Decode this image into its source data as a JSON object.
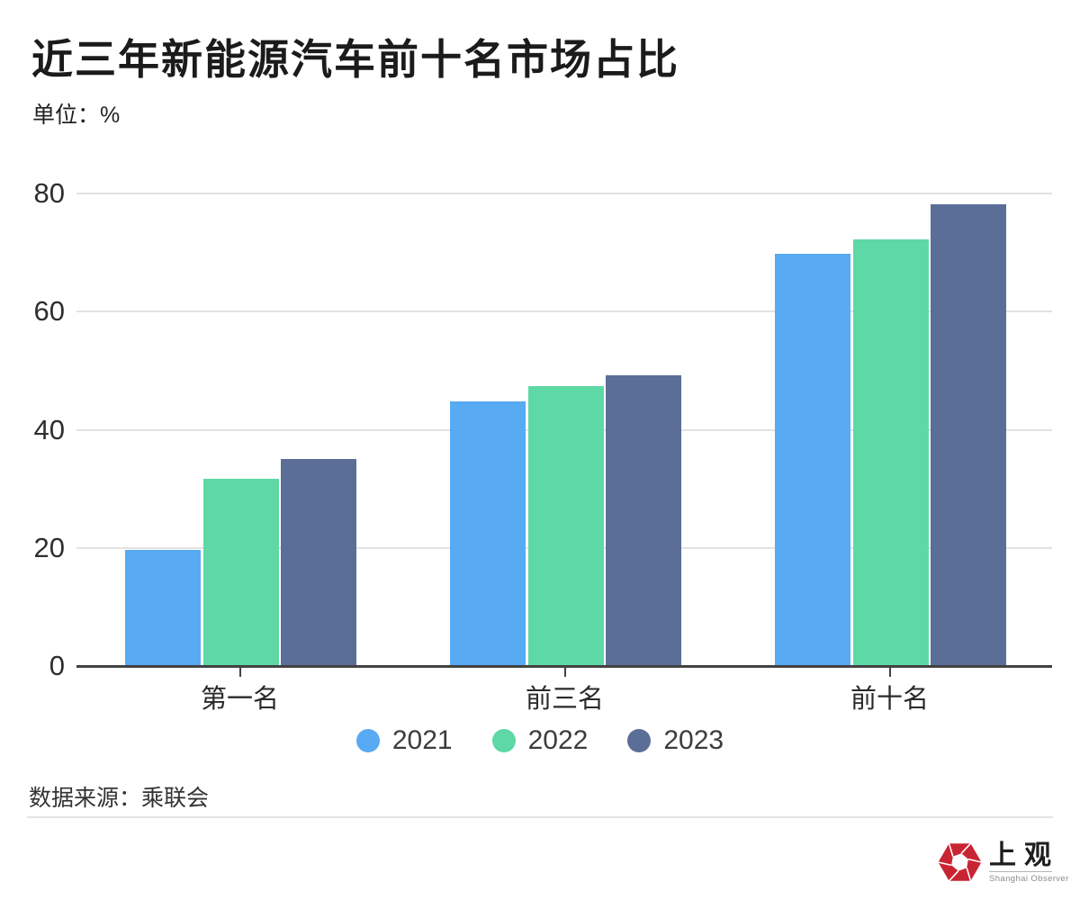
{
  "title": "近三年新能源汽车前十名市场占比",
  "unit_label": "单位：%",
  "source_label": "数据来源：乘联会",
  "logo": {
    "name_cn": "上观",
    "name_en": "Shanghai Observer",
    "brand_color": "#c92433"
  },
  "chart_data": {
    "type": "bar",
    "title": "近三年新能源汽车前十名市场占比",
    "unit": "%",
    "categories": [
      "第一名",
      "前三名",
      "前十名"
    ],
    "series": [
      {
        "name": "2021",
        "color": "#58aaf2",
        "values": [
          19.7,
          44.8,
          69.8
        ]
      },
      {
        "name": "2022",
        "color": "#5ed8a5",
        "values": [
          31.7,
          47.4,
          72.2
        ]
      },
      {
        "name": "2023",
        "color": "#5a6e97",
        "values": [
          35.0,
          49.2,
          78.2
        ]
      }
    ],
    "ylim": [
      0,
      80
    ],
    "yticks": [
      0,
      20,
      40,
      60,
      80
    ],
    "grid": true,
    "legend_position": "bottom",
    "source": "乘联会"
  }
}
